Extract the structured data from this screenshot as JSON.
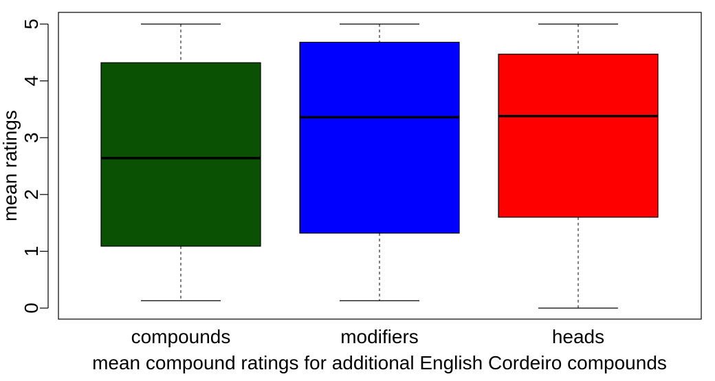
{
  "chart_data": {
    "type": "boxplot",
    "title": "",
    "xlabel": "mean compound ratings for additional English Cordeiro compounds",
    "ylabel": "mean ratings",
    "ylim": [
      -0.2,
      5.2
    ],
    "yticks": [
      0,
      1,
      2,
      3,
      4,
      5
    ],
    "ytick_labels": [
      "0",
      "1",
      "2",
      "3",
      "4",
      "5"
    ],
    "grid": false,
    "categories": [
      "compounds",
      "modifiers",
      "heads"
    ],
    "boxes": [
      {
        "category": "compounds",
        "min": 0.13,
        "q1": 1.09,
        "median": 2.64,
        "q3": 4.32,
        "max": 5.0,
        "color": "#0b5104"
      },
      {
        "category": "modifiers",
        "min": 0.13,
        "q1": 1.32,
        "median": 3.36,
        "q3": 4.68,
        "max": 5.0,
        "color": "#0000ff"
      },
      {
        "category": "heads",
        "min": 0.0,
        "q1": 1.6,
        "median": 3.38,
        "q3": 4.47,
        "max": 5.0,
        "color": "#ff0000"
      }
    ]
  }
}
